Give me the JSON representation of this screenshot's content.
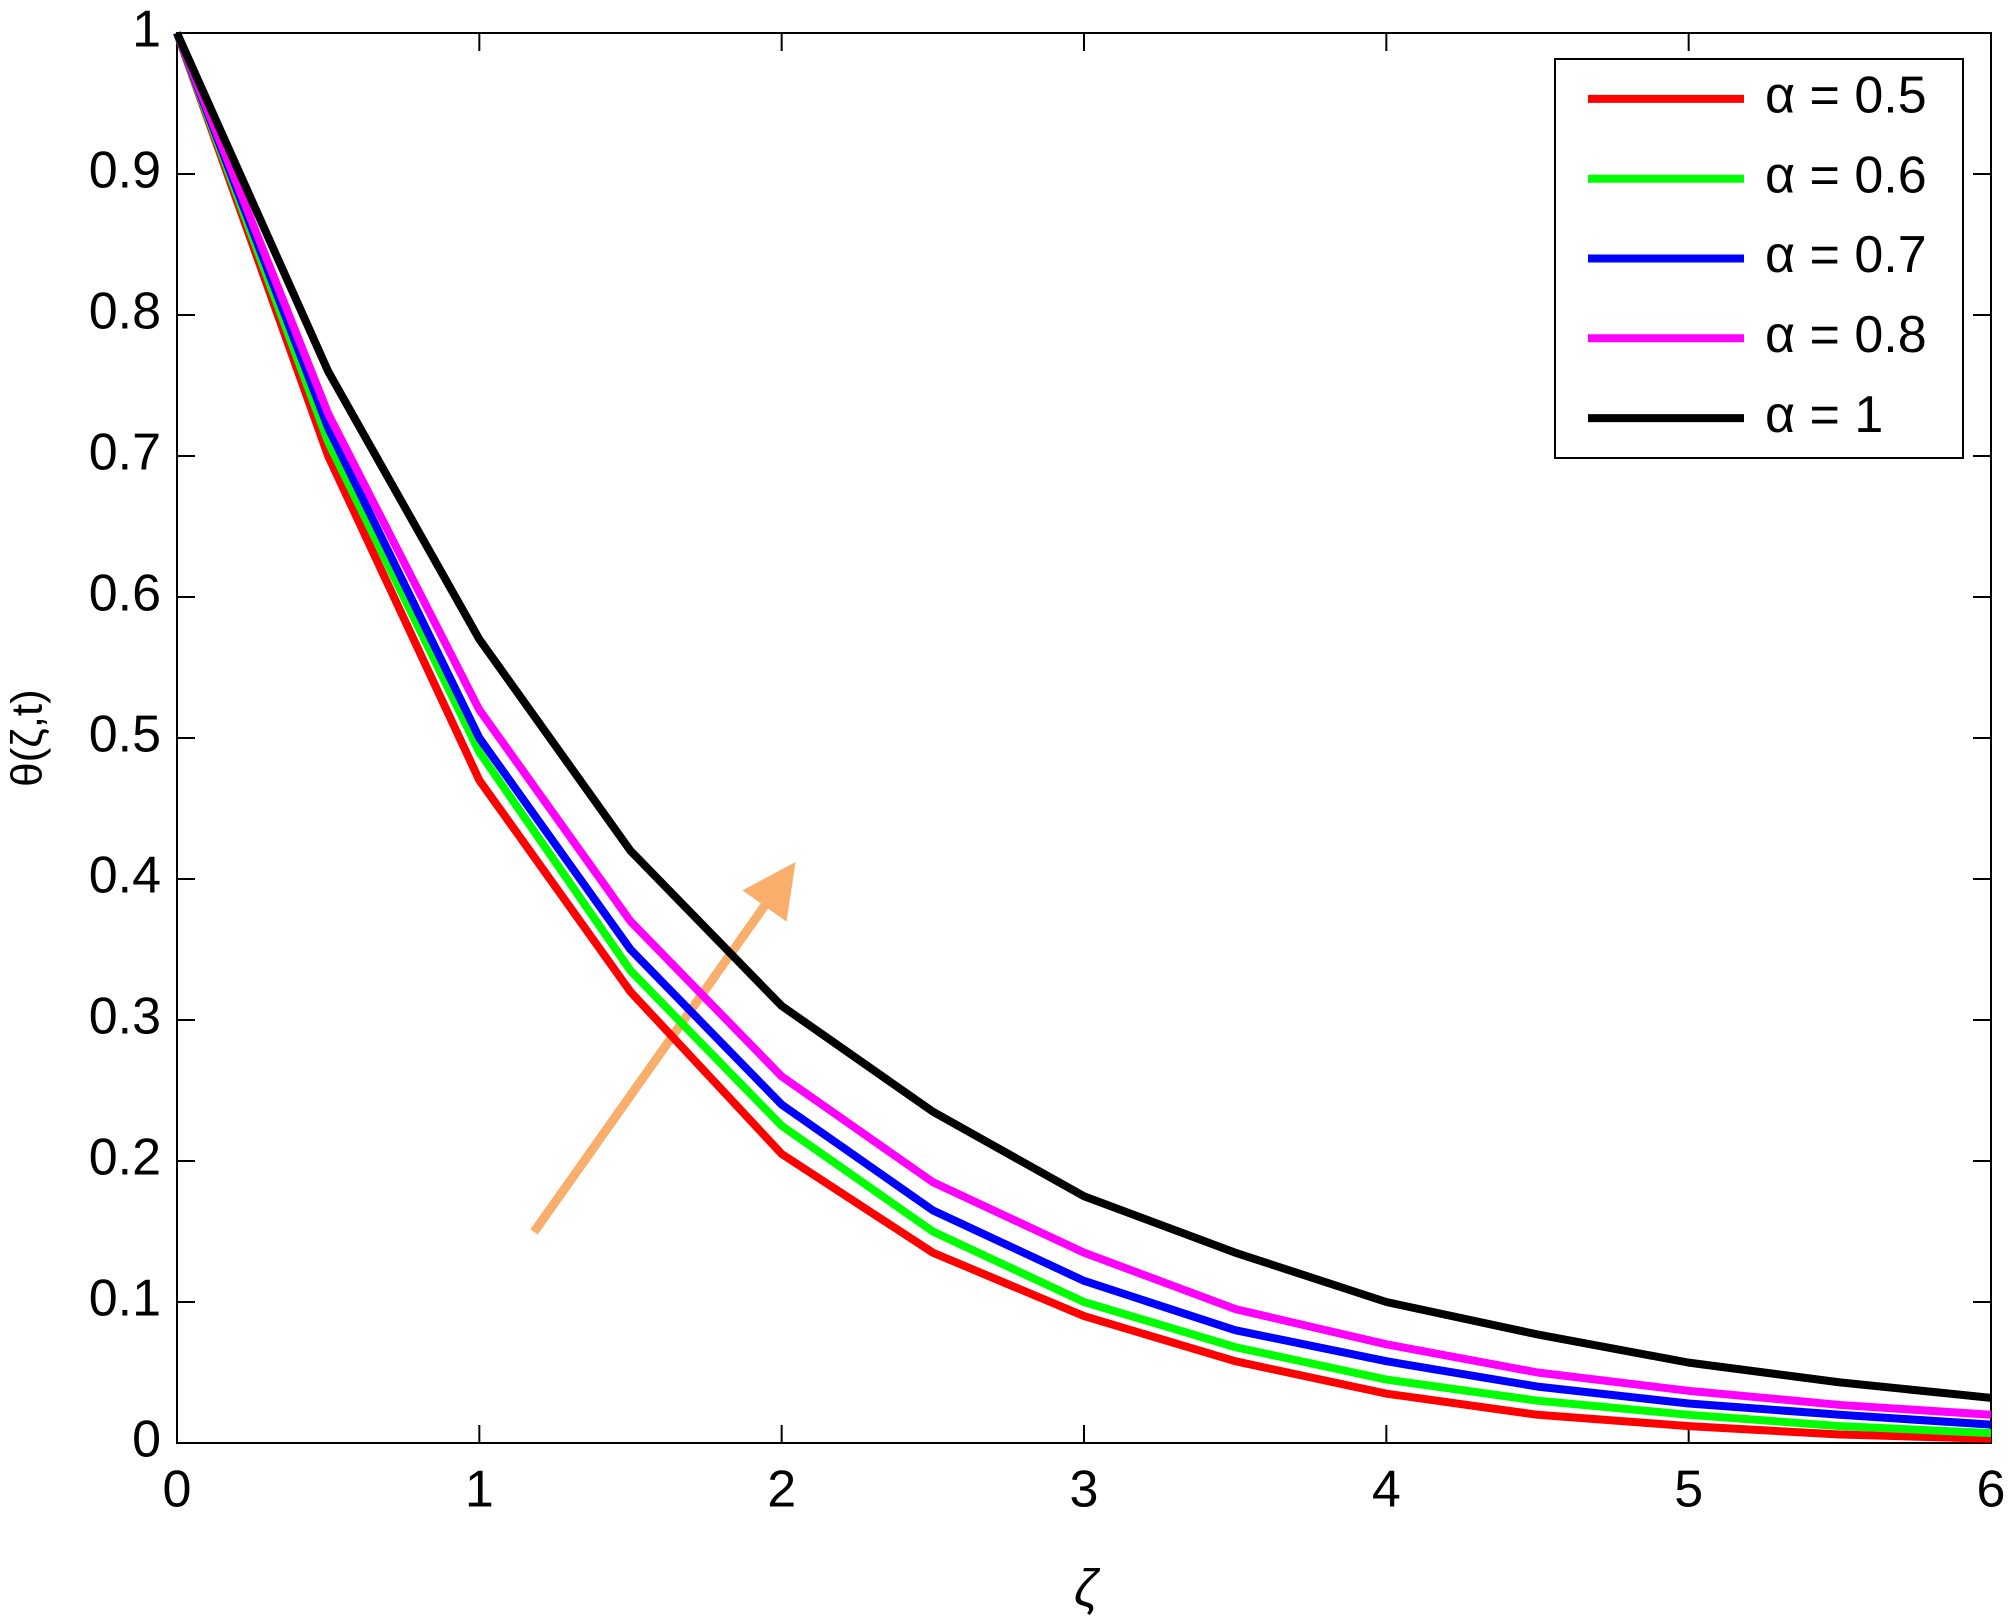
{
  "chart_data": {
    "type": "line",
    "x_label": "ζ",
    "y_label": "θ(ζ,t)",
    "x": [
      0,
      0.5,
      1,
      1.5,
      2,
      2.5,
      3,
      3.5,
      4,
      4.5,
      5,
      5.5,
      6
    ],
    "series": [
      {
        "name": "α = 0.5",
        "color": "#ff0000",
        "values": [
          1,
          0.7,
          0.47,
          0.32,
          0.205,
          0.135,
          0.09,
          0.058,
          0.035,
          0.02,
          0.012,
          0.006,
          0.003
        ]
      },
      {
        "name": "α = 0.6",
        "color": "#00ff00",
        "values": [
          1,
          0.71,
          0.49,
          0.335,
          0.225,
          0.15,
          0.1,
          0.068,
          0.045,
          0.03,
          0.02,
          0.012,
          0.007
        ]
      },
      {
        "name": "α = 0.7",
        "color": "#0000ff",
        "values": [
          1,
          0.72,
          0.5,
          0.35,
          0.24,
          0.165,
          0.115,
          0.08,
          0.058,
          0.04,
          0.028,
          0.02,
          0.013
        ]
      },
      {
        "name": "α = 0.8",
        "color": "#ff00ff",
        "values": [
          1,
          0.73,
          0.52,
          0.37,
          0.26,
          0.185,
          0.135,
          0.095,
          0.07,
          0.05,
          0.037,
          0.027,
          0.02
        ]
      },
      {
        "name": "α = 1",
        "color": "#000000",
        "values": [
          1,
          0.76,
          0.57,
          0.42,
          0.31,
          0.235,
          0.175,
          0.135,
          0.1,
          0.077,
          0.057,
          0.043,
          0.032
        ]
      }
    ],
    "xlim": [
      0,
      6
    ],
    "xticks": [
      0,
      1,
      2,
      3,
      4,
      5,
      6
    ],
    "ylim": [
      0,
      1
    ],
    "yticks": [
      0,
      0.1,
      0.2,
      0.3,
      0.4,
      0.5,
      0.6,
      0.7,
      0.8,
      0.9,
      1
    ],
    "legend": "upper right",
    "grid": false
  }
}
